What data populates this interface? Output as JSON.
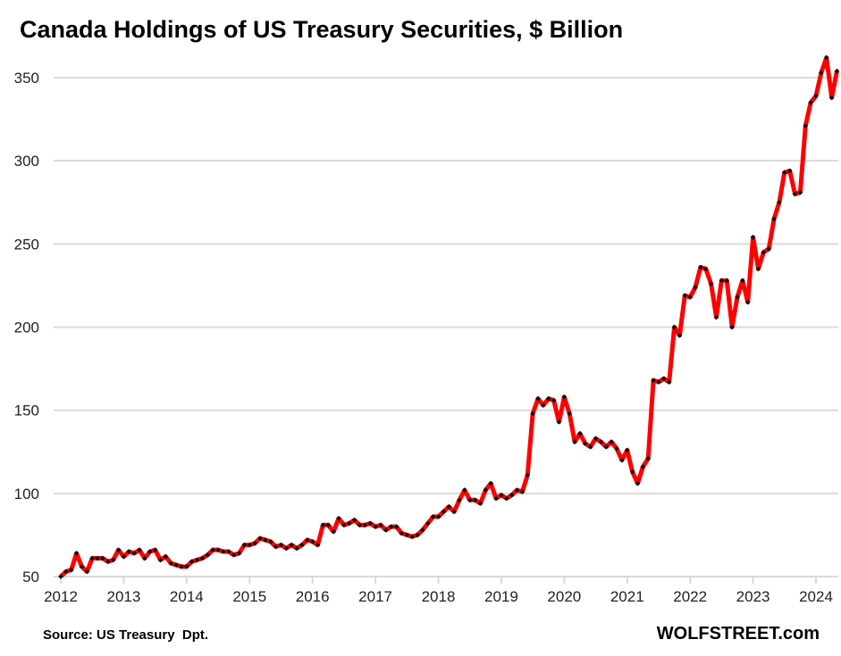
{
  "chart_data": {
    "type": "line",
    "title": "Canada Holdings of US Treasury Securities, $ Billion",
    "xlabel": "",
    "ylabel": "",
    "x_start": "2012-01",
    "frequency": "monthly",
    "xlim": [
      2012,
      2024.42
    ],
    "ylim": [
      50,
      370
    ],
    "x_ticks": [
      "2012",
      "2013",
      "2014",
      "2015",
      "2016",
      "2017",
      "2018",
      "2019",
      "2020",
      "2021",
      "2022",
      "2023",
      "2024"
    ],
    "y_ticks": [
      50,
      100,
      150,
      200,
      250,
      300,
      350
    ],
    "grid": "horizontal",
    "line_color": "#ff0000",
    "marker_color": "#111111",
    "values": [
      50,
      53,
      54,
      64,
      56,
      53,
      61,
      61,
      61,
      59,
      60,
      66,
      62,
      65,
      64,
      66,
      61,
      65,
      66,
      60,
      62,
      58,
      57,
      56,
      56,
      59,
      60,
      61,
      63,
      66,
      66,
      65,
      65,
      63,
      64,
      69,
      69,
      70,
      73,
      72,
      71,
      68,
      69,
      67,
      69,
      67,
      69,
      72,
      71,
      69,
      81,
      81,
      77,
      85,
      81,
      82,
      84,
      81,
      81,
      82,
      80,
      81,
      78,
      80,
      80,
      76,
      75,
      74,
      75,
      78,
      82,
      86,
      86,
      89,
      92,
      89,
      96,
      102,
      96,
      96,
      94,
      102,
      106,
      97,
      99,
      97,
      99,
      102,
      101,
      111,
      148,
      157,
      153,
      157,
      156,
      143,
      158,
      148,
      131,
      136,
      130,
      128,
      133,
      131,
      128,
      131,
      127,
      120,
      126,
      113,
      106,
      116,
      121,
      168,
      167,
      169,
      167,
      200,
      195,
      219,
      218,
      224,
      236,
      235,
      226,
      206,
      228,
      228,
      200,
      218,
      228,
      215,
      254,
      235,
      245,
      247,
      265,
      275,
      293,
      294,
      280,
      281,
      321,
      335,
      339,
      353,
      362,
      338,
      354
    ]
  },
  "footer": {
    "source": "Source: US Treasury  Dpt.",
    "brand": "WOLFSTREET.com"
  }
}
